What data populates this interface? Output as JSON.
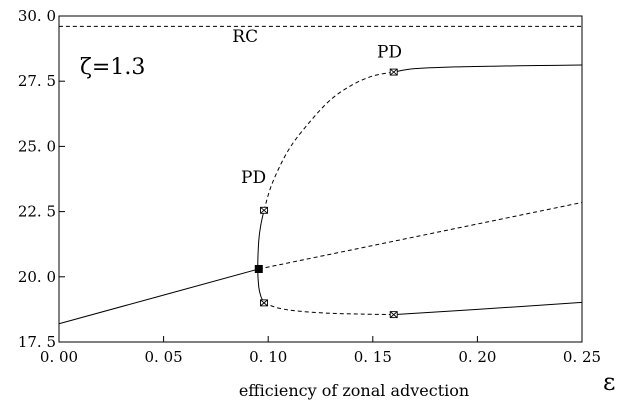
{
  "chart_data": {
    "type": "line",
    "title": "",
    "xlabel": "efficiency of zonal advection",
    "xsymbol": "ε",
    "ylabel": "",
    "xlim": [
      0.0,
      0.25
    ],
    "ylim": [
      17.5,
      30.0
    ],
    "xticks": [
      0.0,
      0.05,
      0.1,
      0.15,
      0.2,
      0.25
    ],
    "xtick_labels": [
      "0. 00",
      "0. 05",
      "0. 10",
      "0. 15",
      "0. 20",
      "0. 25"
    ],
    "yticks": [
      17.5,
      20.0,
      22.5,
      25.0,
      27.5,
      30.0
    ],
    "ytick_labels": [
      "17. 5",
      "20. 0",
      "22. 5",
      "25. 0",
      "27. 5",
      "30. 0"
    ],
    "parameter_label": "ζ=1.3",
    "grid": false,
    "series": [
      {
        "style": "solid",
        "x": [
          0.0,
          0.0955
        ],
        "y": [
          18.2,
          20.3
        ]
      },
      {
        "style": "dashed",
        "x": [
          0.0955,
          0.25
        ],
        "y": [
          20.3,
          22.85
        ]
      },
      {
        "style": "solid",
        "x": [
          0.098,
          0.0965,
          0.0955,
          0.095,
          0.0955,
          0.0965,
          0.098
        ],
        "y": [
          22.55,
          22.0,
          21.4,
          20.3,
          19.6,
          19.25,
          19.0
        ]
      },
      {
        "style": "dashed",
        "x": [
          0.098,
          0.102,
          0.11,
          0.12,
          0.13,
          0.14,
          0.15,
          0.16
        ],
        "y": [
          22.55,
          23.6,
          24.9,
          25.95,
          26.8,
          27.35,
          27.7,
          27.85
        ]
      },
      {
        "style": "solid",
        "x": [
          0.16,
          0.17,
          0.19,
          0.21,
          0.23,
          0.25
        ],
        "y": [
          27.85,
          27.98,
          28.05,
          28.08,
          28.1,
          28.12
        ]
      },
      {
        "style": "dashed",
        "x": [
          0.098,
          0.105,
          0.115,
          0.13,
          0.145,
          0.16
        ],
        "y": [
          19.0,
          18.8,
          18.68,
          18.6,
          18.57,
          18.55
        ]
      },
      {
        "style": "solid",
        "x": [
          0.16,
          0.2,
          0.25
        ],
        "y": [
          18.55,
          18.75,
          19.02
        ]
      },
      {
        "style": "dashed",
        "x": [
          0.0,
          0.25
        ],
        "y": [
          29.6,
          29.6
        ]
      }
    ],
    "markers": [
      {
        "kind": "hopf",
        "x": 0.0955,
        "y": 20.3
      },
      {
        "kind": "pd",
        "x": 0.098,
        "y": 22.55
      },
      {
        "kind": "pd",
        "x": 0.098,
        "y": 19.0
      },
      {
        "kind": "pd",
        "x": 0.16,
        "y": 27.85
      },
      {
        "kind": "pd",
        "x": 0.16,
        "y": 18.55
      }
    ],
    "annotations": [
      {
        "text": "RC",
        "x": 0.089,
        "y": 29.0
      },
      {
        "text": "PD",
        "x": 0.158,
        "y": 28.4
      },
      {
        "text": "PD",
        "x": 0.093,
        "y": 23.6
      }
    ]
  }
}
